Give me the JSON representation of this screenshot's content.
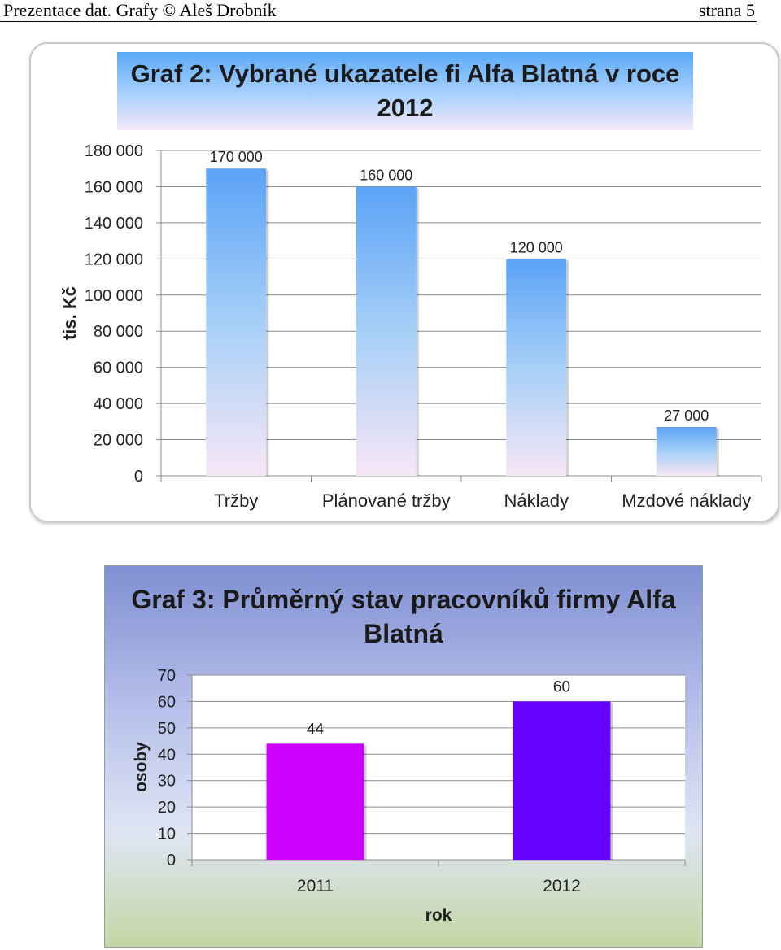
{
  "header": {
    "left_text": "Prezentace dat. Grafy © Aleš Drobník",
    "right_text": "strana 5"
  },
  "chart_data": [
    {
      "type": "bar",
      "title": "Graf 2: Vybrané ukazatele fi Alfa Blatná v roce 2012",
      "categories": [
        "Tržby",
        "Plánované tržby",
        "Náklady",
        "Mzdové náklady"
      ],
      "values": [
        170000,
        160000,
        120000,
        27000
      ],
      "data_labels": [
        "170 000",
        "160 000",
        "120 000",
        "27 000"
      ],
      "ylabel": "tis. Kč",
      "xlabel": "",
      "ylim": [
        0,
        180000
      ],
      "yticks": [
        0,
        20000,
        40000,
        60000,
        80000,
        100000,
        120000,
        140000,
        160000,
        180000
      ],
      "ytick_labels": [
        "0",
        "20 000",
        "40 000",
        "60 000",
        "80 000",
        "100 000",
        "120 000",
        "140 000",
        "160 000",
        "180 000"
      ],
      "grid": true,
      "bar_gradient": [
        "#5ba3f7",
        "#a6cff7",
        "#f7e6f6"
      ]
    },
    {
      "type": "bar",
      "title": "Graf 3: Průměrný stav pracovníků firmy Alfa Blatná",
      "categories": [
        "2011",
        "2012"
      ],
      "values": [
        44,
        60
      ],
      "data_labels": [
        "44",
        "60"
      ],
      "ylabel": "osoby",
      "xlabel": "rok",
      "ylim": [
        0,
        70
      ],
      "yticks": [
        0,
        10,
        20,
        30,
        40,
        50,
        60,
        70
      ],
      "ytick_labels": [
        "0",
        "10",
        "20",
        "30",
        "40",
        "50",
        "60",
        "70"
      ],
      "grid": true,
      "bar_colors": [
        "#cc00ff",
        "#6600ff"
      ]
    }
  ]
}
